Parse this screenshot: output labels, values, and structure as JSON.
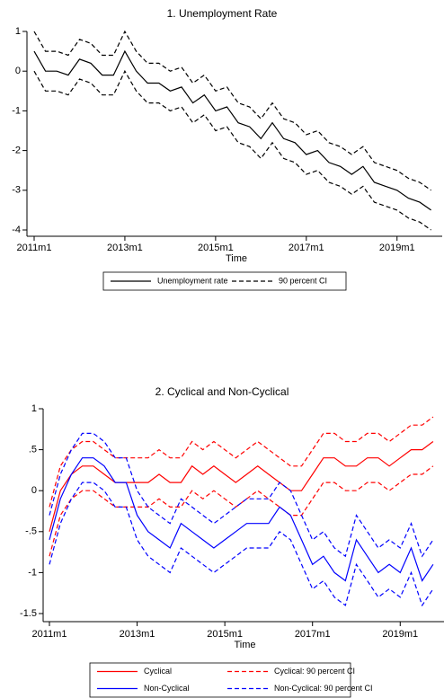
{
  "chart_data": [
    {
      "type": "line",
      "title": "1. Unemployment Rate",
      "xlabel": "Time",
      "x": [
        "2011m1",
        "2011m4",
        "2011m7",
        "2011m10",
        "2012m1",
        "2012m4",
        "2012m7",
        "2012m10",
        "2013m1",
        "2013m4",
        "2013m7",
        "2013m10",
        "2014m1",
        "2014m4",
        "2014m7",
        "2014m10",
        "2015m1",
        "2015m4",
        "2015m7",
        "2015m10",
        "2016m1",
        "2016m4",
        "2016m7",
        "2016m10",
        "2017m1",
        "2017m4",
        "2017m7",
        "2017m10",
        "2018m1",
        "2018m4",
        "2018m7",
        "2018m10",
        "2019m1",
        "2019m4",
        "2019m7",
        "2019m10"
      ],
      "xlim": [
        "2011m1",
        "2019m12"
      ],
      "xticks": [
        "2011m1",
        "2013m1",
        "2015m1",
        "2017m1",
        "2019m1"
      ],
      "ylim": [
        -4,
        1
      ],
      "yticks": [
        1,
        0,
        -1,
        -2,
        -3,
        -4
      ],
      "series": [
        {
          "name": "Unemployment rate",
          "color": "#000000",
          "dashed": false,
          "values": [
            0.5,
            0.0,
            0.0,
            -0.1,
            0.3,
            0.2,
            -0.1,
            -0.1,
            0.5,
            0.0,
            -0.3,
            -0.3,
            -0.5,
            -0.4,
            -0.8,
            -0.6,
            -1.0,
            -0.9,
            -1.3,
            -1.4,
            -1.7,
            -1.3,
            -1.7,
            -1.8,
            -2.1,
            -2.0,
            -2.3,
            -2.4,
            -2.6,
            -2.4,
            -2.8,
            -2.9,
            -3.0,
            -3.2,
            -3.3,
            -3.5
          ]
        },
        {
          "name": "90 percent CI",
          "color": "#000000",
          "dashed": true,
          "upper": [
            1.0,
            0.5,
            0.5,
            0.4,
            0.8,
            0.7,
            0.4,
            0.4,
            1.0,
            0.5,
            0.2,
            0.2,
            0.0,
            0.1,
            -0.3,
            -0.1,
            -0.5,
            -0.4,
            -0.8,
            -0.9,
            -1.2,
            -0.8,
            -1.2,
            -1.3,
            -1.6,
            -1.5,
            -1.8,
            -1.9,
            -2.1,
            -1.9,
            -2.3,
            -2.4,
            -2.5,
            -2.7,
            -2.8,
            -3.0
          ],
          "lower": [
            0.0,
            -0.5,
            -0.5,
            -0.6,
            -0.2,
            -0.3,
            -0.6,
            -0.6,
            0.0,
            -0.5,
            -0.8,
            -0.8,
            -1.0,
            -0.9,
            -1.3,
            -1.1,
            -1.5,
            -1.4,
            -1.8,
            -1.9,
            -2.2,
            -1.8,
            -2.2,
            -2.3,
            -2.6,
            -2.5,
            -2.8,
            -2.9,
            -3.1,
            -2.9,
            -3.3,
            -3.4,
            -3.5,
            -3.7,
            -3.8,
            -4.0
          ]
        }
      ]
    },
    {
      "type": "line",
      "title": "2. Cyclical and Non-Cyclical",
      "xlabel": "Time",
      "x": [
        "2011m1",
        "2011m4",
        "2011m7",
        "2011m10",
        "2012m1",
        "2012m4",
        "2012m7",
        "2012m10",
        "2013m1",
        "2013m4",
        "2013m7",
        "2013m10",
        "2014m1",
        "2014m4",
        "2014m7",
        "2014m10",
        "2015m1",
        "2015m4",
        "2015m7",
        "2015m10",
        "2016m1",
        "2016m4",
        "2016m7",
        "2016m10",
        "2017m1",
        "2017m4",
        "2017m7",
        "2017m10",
        "2018m1",
        "2018m4",
        "2018m7",
        "2018m10",
        "2019m1",
        "2019m4",
        "2019m7",
        "2019m10"
      ],
      "xlim": [
        "2011m1",
        "2019m12"
      ],
      "xticks": [
        "2011m1",
        "2013m1",
        "2015m1",
        "2017m1",
        "2019m1"
      ],
      "ylim": [
        -1.5,
        1
      ],
      "yticks": [
        1,
        {
          "value": 0.5,
          "label": ".5"
        },
        0,
        {
          "value": -0.5,
          "label": "-.5"
        },
        -1,
        -1.5
      ],
      "series": [
        {
          "name": "Cyclical",
          "color": "#ff0000",
          "dashed": false,
          "values": [
            -0.5,
            0.0,
            0.2,
            0.3,
            0.3,
            0.2,
            0.1,
            0.1,
            0.1,
            0.1,
            0.2,
            0.1,
            0.1,
            0.3,
            0.2,
            0.3,
            0.2,
            0.1,
            0.2,
            0.3,
            0.2,
            0.1,
            0.0,
            0.0,
            0.2,
            0.4,
            0.4,
            0.3,
            0.3,
            0.4,
            0.4,
            0.3,
            0.4,
            0.5,
            0.5,
            0.6
          ]
        },
        {
          "name": "Cyclical: 90 percent CI",
          "color": "#ff0000",
          "dashed": true,
          "upper": [
            -0.2,
            0.3,
            0.5,
            0.6,
            0.6,
            0.5,
            0.4,
            0.4,
            0.4,
            0.4,
            0.5,
            0.4,
            0.4,
            0.6,
            0.5,
            0.6,
            0.5,
            0.4,
            0.5,
            0.6,
            0.5,
            0.4,
            0.3,
            0.3,
            0.5,
            0.7,
            0.7,
            0.6,
            0.6,
            0.7,
            0.7,
            0.6,
            0.7,
            0.8,
            0.8,
            0.9
          ],
          "lower": [
            -0.8,
            -0.3,
            -0.1,
            0.0,
            0.0,
            -0.1,
            -0.2,
            -0.2,
            -0.2,
            -0.2,
            -0.1,
            -0.2,
            -0.2,
            0.0,
            -0.1,
            0.0,
            -0.1,
            -0.2,
            -0.1,
            0.0,
            -0.1,
            -0.2,
            -0.3,
            -0.3,
            -0.1,
            0.1,
            0.1,
            0.0,
            0.0,
            0.1,
            0.1,
            0.0,
            0.1,
            0.2,
            0.2,
            0.3
          ]
        },
        {
          "name": "Non-Cyclical",
          "color": "#0000ff",
          "dashed": false,
          "values": [
            -0.6,
            -0.1,
            0.2,
            0.4,
            0.4,
            0.3,
            0.1,
            0.1,
            -0.3,
            -0.5,
            -0.6,
            -0.7,
            -0.4,
            -0.5,
            -0.6,
            -0.7,
            -0.6,
            -0.5,
            -0.4,
            -0.4,
            -0.4,
            -0.2,
            -0.3,
            -0.6,
            -0.9,
            -0.8,
            -1.0,
            -1.1,
            -0.6,
            -0.8,
            -1.0,
            -0.9,
            -1.0,
            -0.7,
            -1.1,
            -0.9
          ]
        },
        {
          "name": "Non-Cyclical: 90 percent CI",
          "color": "#0000ff",
          "dashed": true,
          "upper": [
            -0.3,
            0.2,
            0.5,
            0.7,
            0.7,
            0.6,
            0.4,
            0.4,
            0.0,
            -0.2,
            -0.3,
            -0.4,
            -0.1,
            -0.2,
            -0.3,
            -0.4,
            -0.3,
            -0.2,
            -0.1,
            -0.1,
            -0.1,
            0.1,
            0.0,
            -0.3,
            -0.6,
            -0.5,
            -0.7,
            -0.8,
            -0.3,
            -0.5,
            -0.7,
            -0.6,
            -0.7,
            -0.4,
            -0.8,
            -0.6
          ],
          "lower": [
            -0.9,
            -0.4,
            -0.1,
            0.1,
            0.1,
            0.0,
            -0.2,
            -0.2,
            -0.6,
            -0.8,
            -0.9,
            -1.0,
            -0.7,
            -0.8,
            -0.9,
            -1.0,
            -0.9,
            -0.8,
            -0.7,
            -0.7,
            -0.7,
            -0.5,
            -0.6,
            -0.9,
            -1.2,
            -1.1,
            -1.3,
            -1.4,
            -0.9,
            -1.1,
            -1.3,
            -1.2,
            -1.3,
            -1.0,
            -1.4,
            -1.2
          ]
        }
      ]
    }
  ]
}
